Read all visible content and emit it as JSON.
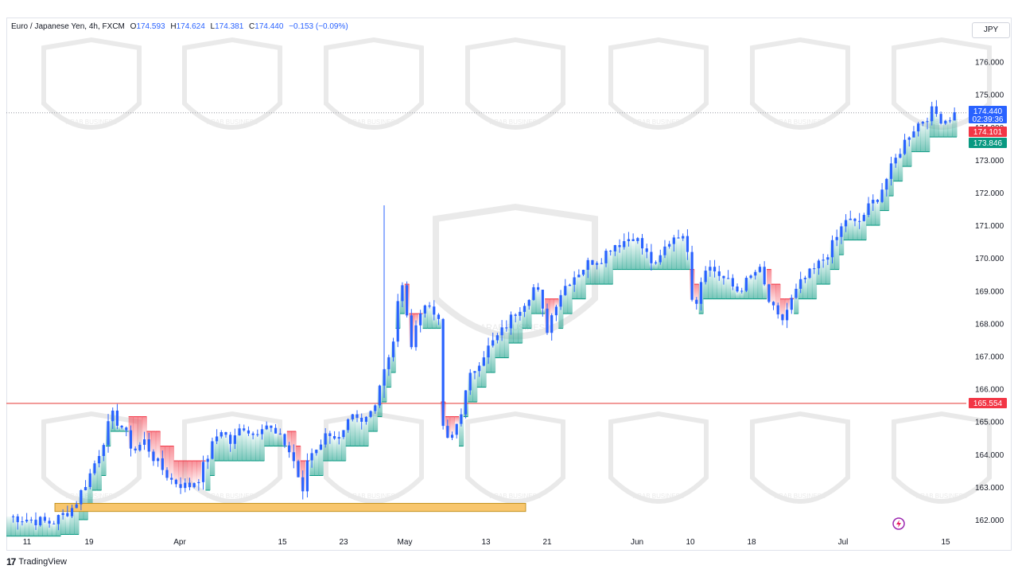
{
  "header": {
    "symbol": "Euro / Japanese Yen, 4h, FXCM",
    "open_label": "O",
    "open": "174.593",
    "high_label": "H",
    "high": "174.624",
    "low_label": "L",
    "low": "174.381",
    "close_label": "C",
    "close": "174.440",
    "change": "−0.153 (−0.09%)"
  },
  "currency": "JPY",
  "footer": {
    "brand": "TradingView"
  },
  "watermark": {
    "text": "ARAB BUSINESS"
  },
  "colors": {
    "up": "#089981",
    "down": "#f23645",
    "candle": "#2962ff",
    "level_line": "#e53935",
    "zone": "#f8c66d",
    "price_tag": "#2962ff"
  },
  "chart_data": {
    "type": "candlestick",
    "title": "Euro / Japanese Yen, 4h, FXCM",
    "y_axis": {
      "side": "right",
      "unit": "JPY",
      "ylim": [
        161.6,
        176.6
      ],
      "ticks": [
        "176.000",
        "175.000",
        "174.000",
        "173.000",
        "172.000",
        "171.000",
        "170.000",
        "169.000",
        "168.000",
        "167.000",
        "166.000",
        "165.000",
        "164.000",
        "163.000",
        "162.000"
      ]
    },
    "x_axis": {
      "ticks": [
        "11",
        "19",
        "Apr",
        "15",
        "23",
        "May",
        "13",
        "21",
        "Jun",
        "10",
        "18",
        "Jul",
        "15"
      ]
    },
    "price_labels": [
      {
        "value": "174.440",
        "extra": "02:39:36",
        "color": "#2962ff"
      },
      {
        "value": "174.101",
        "color": "#f23645"
      },
      {
        "value": "173.846",
        "color": "#089981"
      },
      {
        "value": "165.554",
        "color": "#f23645"
      }
    ],
    "horizontal_level": 165.554,
    "demand_zone": {
      "from": 162.25,
      "to": 162.5,
      "start": "13",
      "end": "May 18"
    },
    "series": [
      {
        "name": "price",
        "values": [
          [
            0,
            162.1
          ],
          [
            8,
            161.9
          ],
          [
            12,
            162.4
          ],
          [
            15,
            163.4
          ],
          [
            17,
            164.2
          ],
          [
            19,
            165.2
          ],
          [
            21,
            164.8
          ],
          [
            23,
            164.1
          ],
          [
            25,
            164.4
          ],
          [
            27,
            163.8
          ],
          [
            30,
            163.2
          ],
          [
            33,
            163.0
          ],
          [
            35,
            163.3
          ],
          [
            37,
            164.1
          ],
          [
            39,
            164.8
          ],
          [
            41,
            164.3
          ],
          [
            43,
            164.9
          ],
          [
            45,
            164.6
          ],
          [
            47,
            165.0
          ],
          [
            49,
            164.6
          ],
          [
            51,
            164.3
          ],
          [
            53,
            163.6
          ],
          [
            54,
            162.6
          ],
          [
            55,
            163.9
          ],
          [
            57,
            164.3
          ],
          [
            59,
            164.7
          ],
          [
            61,
            164.4
          ],
          [
            63,
            165.1
          ],
          [
            65,
            164.9
          ],
          [
            67,
            165.4
          ],
          [
            69,
            166.6
          ],
          [
            71,
            167.6
          ],
          [
            72,
            169.3
          ],
          [
            73,
            168.8
          ],
          [
            74,
            167.0
          ],
          [
            75,
            168.2
          ],
          [
            77,
            168.6
          ],
          [
            79,
            168.3
          ],
          [
            80,
            164.6
          ],
          [
            81,
            164.3
          ],
          [
            83,
            165.2
          ],
          [
            85,
            166.4
          ],
          [
            87,
            167.0
          ],
          [
            89,
            167.4
          ],
          [
            91,
            167.8
          ],
          [
            93,
            168.3
          ],
          [
            95,
            168.7
          ],
          [
            97,
            169.2
          ],
          [
            99,
            167.8
          ],
          [
            101,
            168.8
          ],
          [
            103,
            169.3
          ],
          [
            105,
            169.6
          ],
          [
            107,
            169.9
          ],
          [
            109,
            170.0
          ],
          [
            111,
            170.4
          ],
          [
            113,
            170.5
          ],
          [
            115,
            170.7
          ],
          [
            117,
            170.2
          ],
          [
            119,
            169.7
          ],
          [
            121,
            170.4
          ],
          [
            123,
            170.8
          ],
          [
            125,
            170.3
          ],
          [
            126,
            168.3
          ],
          [
            128,
            169.8
          ],
          [
            130,
            169.6
          ],
          [
            132,
            169.3
          ],
          [
            134,
            169.0
          ],
          [
            136,
            169.3
          ],
          [
            138,
            169.7
          ],
          [
            140,
            168.6
          ],
          [
            142,
            168.0
          ],
          [
            144,
            168.7
          ],
          [
            146,
            169.3
          ],
          [
            148,
            169.6
          ],
          [
            150,
            170.0
          ],
          [
            152,
            170.5
          ],
          [
            154,
            171.2
          ],
          [
            156,
            171.0
          ],
          [
            158,
            171.5
          ],
          [
            160,
            171.9
          ],
          [
            162,
            172.6
          ],
          [
            164,
            173.3
          ],
          [
            166,
            173.9
          ],
          [
            168,
            174.2
          ],
          [
            170,
            174.5
          ],
          [
            172,
            174.2
          ],
          [
            174,
            174.4
          ]
        ]
      }
    ]
  }
}
